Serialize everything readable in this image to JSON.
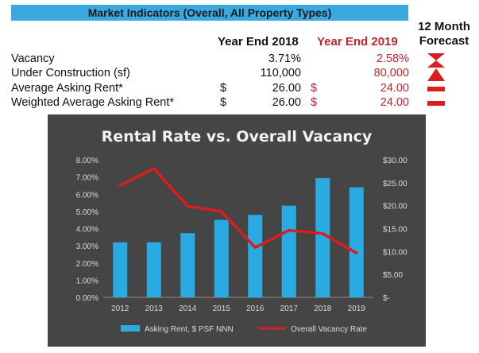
{
  "header": {
    "title": "Market Indicators (Overall, All Property Types)",
    "forecast_line1": "12 Month",
    "forecast_line2": "Forecast",
    "col_2018": "Year End 2018",
    "col_2019": "Year End 2019"
  },
  "indicators": [
    {
      "label": "Vacancy",
      "currency_2018": "",
      "value_2018": "3.71%",
      "currency_2019": "",
      "value_2019": "2.58%",
      "forecast_icon": "hourglass-down-icon"
    },
    {
      "label": "Under Construction (sf)",
      "currency_2018": "",
      "value_2018": "110,000",
      "currency_2019": "",
      "value_2019": "80,000",
      "forecast_icon": "triangle-up-icon"
    },
    {
      "label": "Average Asking Rent*",
      "currency_2018": "$",
      "value_2018": "26.00",
      "currency_2019": "$",
      "value_2019": "24.00",
      "forecast_icon": "dash-flat-icon"
    },
    {
      "label": "Weighted Average Asking Rent*",
      "currency_2018": "$",
      "value_2018": "26.00",
      "currency_2019": "$",
      "value_2019": "24.00",
      "forecast_icon": "dash-flat-icon"
    }
  ],
  "colors": {
    "banner": "#3aa9e0",
    "year_2019_text": "#c0262d",
    "chart_bg": "#454545",
    "bar": "#29abe2",
    "line": "#d81e1e",
    "axis_text": "#d9d9d9"
  },
  "chart_data": {
    "type": "bar",
    "title": "Rental Rate vs. Overall Vacancy",
    "categories": [
      "2012",
      "2013",
      "2014",
      "2015",
      "2016",
      "2017",
      "2018",
      "2019"
    ],
    "series": [
      {
        "name": "Asking Rent, $ PSF NNN",
        "type": "bar",
        "axis": "right",
        "values": [
          12.0,
          12.0,
          14.0,
          16.9,
          18.0,
          20.0,
          26.0,
          24.0
        ]
      },
      {
        "name": "Overall Vacancy Rate",
        "type": "line",
        "axis": "left",
        "values": [
          6.5,
          7.5,
          5.3,
          5.0,
          2.9,
          3.9,
          3.71,
          2.58
        ]
      }
    ],
    "y_left": {
      "ticks": [
        "0.00%",
        "1.00%",
        "2.00%",
        "3.00%",
        "4.00%",
        "5.00%",
        "6.00%",
        "7.00%",
        "8.00%"
      ],
      "range": [
        0,
        8
      ]
    },
    "y_right": {
      "ticks": [
        "$-",
        "$5.00",
        "$10.00",
        "$15.00",
        "$20.00",
        "$25.00",
        "$30.00"
      ],
      "range": [
        0,
        30
      ]
    },
    "legend_position": "bottom",
    "grid": false
  }
}
